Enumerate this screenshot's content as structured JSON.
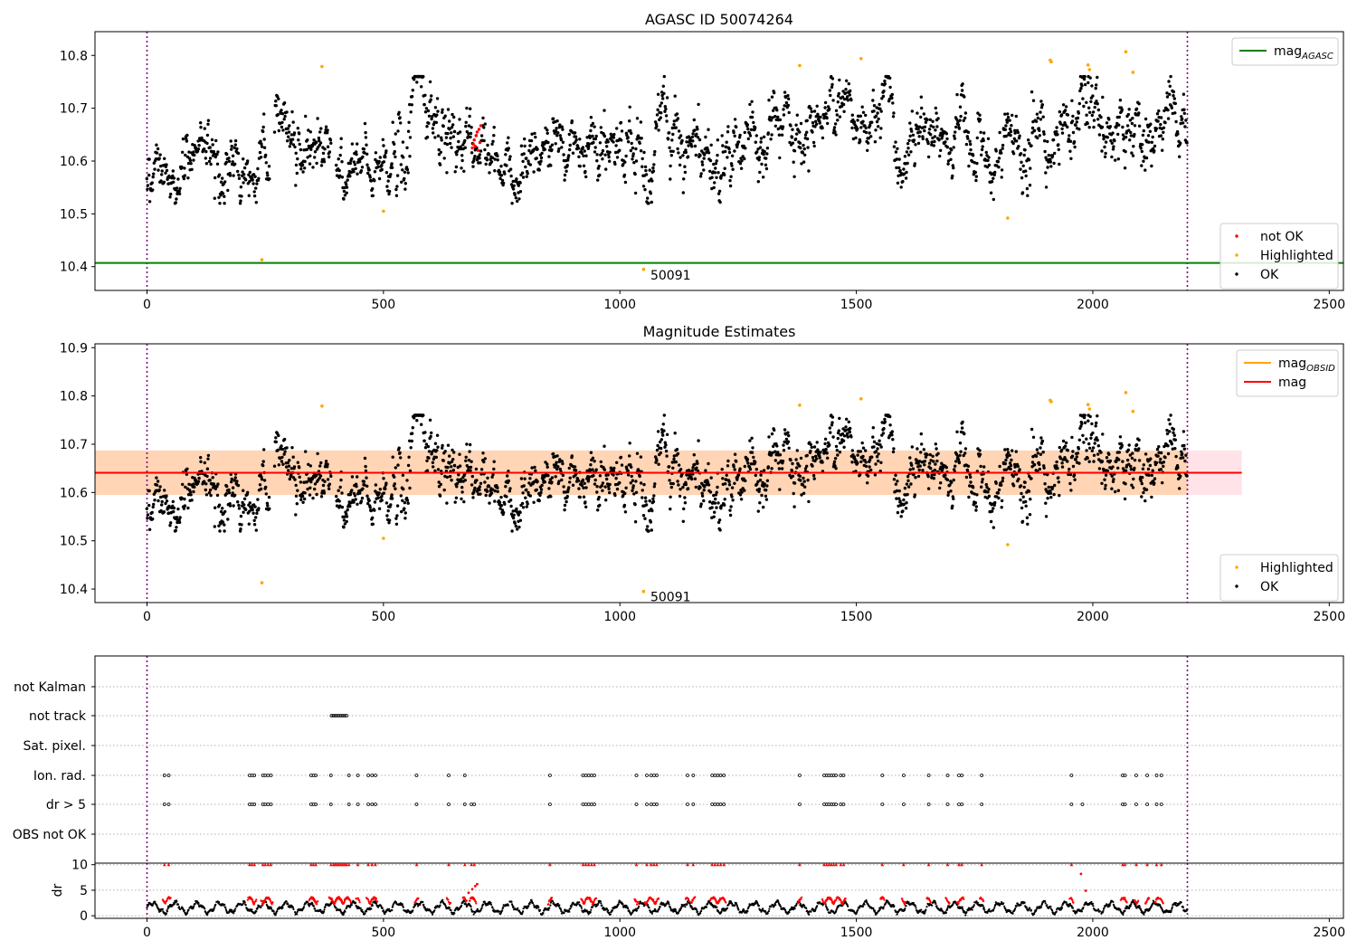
{
  "chart_data": [
    {
      "id": "agasc",
      "type": "scatter",
      "title": "AGASC ID 50074264",
      "xlabel": "",
      "ylabel": "",
      "xlim": [
        -110,
        2530
      ],
      "ylim": [
        10.355,
        10.845
      ],
      "xticks": [
        0,
        500,
        1000,
        1500,
        2000,
        2500
      ],
      "yticks": [
        10.4,
        10.5,
        10.6,
        10.7,
        10.8
      ],
      "vlines": [
        0,
        2200
      ],
      "hlines": [
        {
          "name": "mag_AGASC",
          "y": 10.407,
          "color": "#008000"
        }
      ],
      "legend_upper": {
        "placement": "upper right",
        "entries": [
          {
            "text": "mag",
            "subscript": "AGASC",
            "kind": "line",
            "color": "#008000"
          }
        ]
      },
      "legend_lower": {
        "placement": "lower right",
        "entries": [
          {
            "text": "not OK",
            "kind": "marker",
            "color": "#ff0000"
          },
          {
            "text": "Highlighted",
            "kind": "marker",
            "color": "#ffa500"
          },
          {
            "text": "OK",
            "kind": "marker",
            "color": "#000000"
          }
        ]
      },
      "annotations": [
        {
          "text": "50091",
          "x": 1055,
          "y": 10.384
        }
      ],
      "series": [
        {
          "name": "OK",
          "color": "#000000",
          "segments": [
            [
              0,
              10.6,
              0.035,
              260
            ],
            [
              270,
              10.63,
              0.04,
              120
            ],
            [
              400,
              10.59,
              0.03,
              120
            ],
            [
              520,
              10.66,
              0.045,
              120
            ],
            [
              640,
              10.62,
              0.035,
              180
            ],
            [
              820,
              10.63,
              0.04,
              220
            ],
            [
              1040,
              10.61,
              0.04,
              200
            ],
            [
              1240,
              10.65,
              0.04,
              160
            ],
            [
              1400,
              10.7,
              0.035,
              180
            ],
            [
              1580,
              10.62,
              0.035,
              200
            ],
            [
              1780,
              10.62,
              0.045,
              150
            ],
            [
              1930,
              10.67,
              0.04,
              270
            ]
          ]
        },
        {
          "name": "Highlighted",
          "color": "#ffa500",
          "points": [
            [
              243,
              10.413
            ],
            [
              370,
              10.779
            ],
            [
              500,
              10.505
            ],
            [
              1050,
              10.395
            ],
            [
              1380,
              10.781
            ],
            [
              1510,
              10.794
            ],
            [
              1820,
              10.492
            ],
            [
              1910,
              10.791
            ],
            [
              1912,
              10.788
            ],
            [
              1990,
              10.782
            ],
            [
              1993,
              10.773
            ],
            [
              2070,
              10.807
            ],
            [
              2085,
              10.768
            ]
          ]
        },
        {
          "name": "not OK",
          "color": "#ff0000",
          "points": [
            [
              688,
              10.625
            ],
            [
              690,
              10.632
            ],
            [
              692,
              10.64
            ],
            [
              694,
              10.628
            ],
            [
              696,
              10.648
            ],
            [
              698,
              10.655
            ],
            [
              700,
              10.62
            ],
            [
              702,
              10.66
            ],
            [
              704,
              10.635
            ],
            [
              706,
              10.667
            ]
          ]
        }
      ]
    },
    {
      "id": "magest",
      "type": "scatter",
      "title": "Magnitude Estimates",
      "xlabel": "",
      "ylabel": "",
      "xlim": [
        -110,
        2530
      ],
      "ylim": [
        10.372,
        10.908
      ],
      "xticks": [
        0,
        500,
        1000,
        1500,
        2000,
        2500
      ],
      "yticks": [
        10.4,
        10.5,
        10.6,
        10.7,
        10.8,
        10.9
      ],
      "vlines": [
        0,
        2200
      ],
      "band_outer": {
        "x": [
          -110,
          2315
        ],
        "y": [
          10.595,
          10.687
        ],
        "color": "#ffc0cb"
      },
      "band_inner": {
        "x": [
          -110,
          2200
        ],
        "y": [
          10.595,
          10.687
        ],
        "color": "#ffa500"
      },
      "lines": [
        {
          "name": "mag",
          "y": 10.641,
          "x": [
            -110,
            2315
          ],
          "color": "#ff0000"
        }
      ],
      "legend_upper": {
        "placement": "upper right",
        "entries": [
          {
            "text": "mag",
            "subscript": "OBSID",
            "kind": "line",
            "color": "#ffa500"
          },
          {
            "text": "mag",
            "kind": "line",
            "color": "#ff0000"
          }
        ]
      },
      "legend_lower": {
        "placement": "lower right",
        "entries": [
          {
            "text": "Highlighted",
            "kind": "marker",
            "color": "#ffa500"
          },
          {
            "text": "OK",
            "kind": "marker",
            "color": "#000000"
          }
        ]
      },
      "annotations": [
        {
          "text": "50091",
          "x": 1055,
          "y": 10.384
        }
      ]
    },
    {
      "id": "flags",
      "type": "scatter",
      "xlabel": "",
      "ylabel": "",
      "xlim": [
        -110,
        2530
      ],
      "vlines": [
        0,
        2200
      ],
      "categories": [
        "not Kalman",
        "not track",
        "Sat. pixel.",
        "Ion. rad.",
        "dr > 5",
        "OBS not OK"
      ],
      "flagged_x": {
        "not track": [
          390,
          394,
          398,
          402,
          406,
          410,
          414,
          418,
          422
        ],
        "Ion. rad.": [
          37,
          46,
          217,
          222,
          227,
          245,
          250,
          256,
          262,
          347,
          352,
          357,
          389,
          427,
          446,
          468,
          476,
          483,
          570,
          638,
          672,
          852,
          922,
          928,
          934,
          940,
          946,
          1035,
          1057,
          1066,
          1072,
          1078,
          1143,
          1155,
          1195,
          1201,
          1207,
          1213,
          1220,
          1380,
          1432,
          1437,
          1442,
          1447,
          1452,
          1457,
          1467,
          1473,
          1555,
          1600,
          1653,
          1693,
          1717,
          1723,
          1765,
          1955,
          2063,
          2068,
          2092,
          2115,
          2135,
          2145
        ],
        "dr > 5": [
          37,
          46,
          217,
          222,
          227,
          245,
          250,
          256,
          262,
          347,
          352,
          357,
          389,
          427,
          446,
          468,
          476,
          483,
          570,
          638,
          672,
          686,
          692,
          852,
          922,
          928,
          934,
          940,
          946,
          1035,
          1057,
          1066,
          1072,
          1078,
          1143,
          1155,
          1195,
          1201,
          1207,
          1213,
          1220,
          1380,
          1432,
          1437,
          1442,
          1447,
          1452,
          1457,
          1467,
          1473,
          1555,
          1600,
          1653,
          1693,
          1717,
          1723,
          1765,
          1955,
          1978,
          2063,
          2068,
          2092,
          2115,
          2135,
          2145
        ]
      }
    },
    {
      "id": "dr",
      "type": "scatter",
      "xlabel": "",
      "ylabel": "dr",
      "xlim": [
        -110,
        2530
      ],
      "ylim": [
        -0.5,
        10.3
      ],
      "xticks": [
        0,
        500,
        1000,
        1500,
        2000,
        2500
      ],
      "yticks": [
        0,
        5,
        10
      ],
      "vlines": [
        0,
        2200
      ],
      "clipped_value": 10,
      "high_dr_x": [
        37,
        46,
        217,
        222,
        227,
        245,
        250,
        256,
        262,
        347,
        352,
        357,
        389,
        394,
        398,
        402,
        406,
        410,
        414,
        418,
        422,
        427,
        446,
        468,
        476,
        483,
        570,
        638,
        672,
        686,
        692,
        852,
        922,
        928,
        934,
        940,
        946,
        1035,
        1057,
        1066,
        1072,
        1078,
        1143,
        1155,
        1195,
        1201,
        1207,
        1213,
        1220,
        1380,
        1432,
        1437,
        1442,
        1447,
        1452,
        1457,
        1467,
        1473,
        1555,
        1600,
        1653,
        1693,
        1717,
        1723,
        1765,
        1955,
        2063,
        2068,
        2092,
        2115,
        2135,
        2145
      ],
      "red_points": [
        [
          1975,
          8.2
        ],
        [
          1985,
          4.9
        ],
        [
          680,
          4.5
        ],
        [
          688,
          5.2
        ],
        [
          694,
          5.8
        ],
        [
          698,
          6.2
        ]
      ]
    }
  ]
}
